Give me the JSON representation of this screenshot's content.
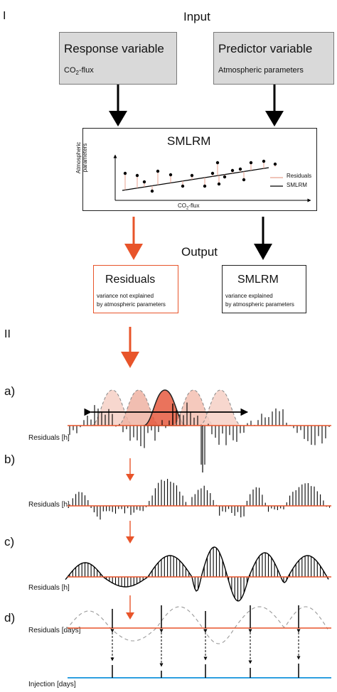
{
  "section_1": "I",
  "section_2": "II",
  "input_label": "Input",
  "output_label": "Output",
  "response_box": {
    "title": "Response variable",
    "sub_prefix": "CO",
    "sub_subscript": "2",
    "sub_suffix": "-flux"
  },
  "predictor_box": {
    "title": "Predictor variable",
    "sub": "Atmospheric parameters"
  },
  "model_box": {
    "title": "SMLRM",
    "y_axis": "Atmospheric\nparameters",
    "x_axis_prefix": "CO",
    "x_axis_subscript": "2",
    "x_axis_suffix": "-flux",
    "legend": [
      "Residuals",
      "SMLRM"
    ]
  },
  "residuals_box": {
    "title": "Residuals",
    "line1": "variance not explained",
    "line2": "by atmospheric parameters"
  },
  "smlrm_box": {
    "title": "SMLRM",
    "line1": "variance explained",
    "line2": "by atmospheric parameters"
  },
  "panels": [
    {
      "tag": "a)",
      "axis": "Residuals [h]"
    },
    {
      "tag": "b)",
      "axis": "Residuals [h]"
    },
    {
      "tag": "c)",
      "axis": "Residuals [h]"
    },
    {
      "tag": "d)",
      "axis": "Residuals [days]"
    }
  ],
  "injection_axis": "Injection [days]",
  "colors": {
    "orange": "#e8542a",
    "salmon": "#e8a08f",
    "blue": "#2e9fe0",
    "gray_box": "#d9d9d9"
  }
}
